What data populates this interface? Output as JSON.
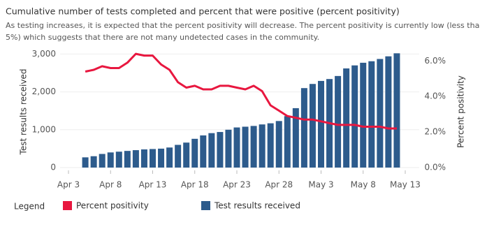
{
  "chart_data": {
    "type": "bar-line",
    "title": "Cumulative number of tests completed and percent that were positive (percent positivity)",
    "subtitle": [
      "As testing increases, it is expected that the percent positivity will decrease. The percent positivity is currently low (less than",
      "5%) which suggests that there are not many undetected cases in the community."
    ],
    "y_label": "Test results received",
    "y2_label": "Percent positivity",
    "legend_title": "Legend",
    "x": [
      "Apr 5",
      "Apr 6",
      "Apr 7",
      "Apr 8",
      "Apr 9",
      "Apr 10",
      "Apr 11",
      "Apr 12",
      "Apr 13",
      "Apr 14",
      "Apr 15",
      "Apr 16",
      "Apr 17",
      "Apr 18",
      "Apr 19",
      "Apr 20",
      "Apr 21",
      "Apr 22",
      "Apr 23",
      "Apr 24",
      "Apr 25",
      "Apr 26",
      "Apr 27",
      "Apr 28",
      "Apr 29",
      "Apr 30",
      "May 1",
      "May 2",
      "May 3",
      "May 4",
      "May 5",
      "May 6",
      "May 7",
      "May 8",
      "May 9",
      "May 10",
      "May 11",
      "May 12"
    ],
    "xticks": [
      "Apr 3",
      "Apr 8",
      "Apr 13",
      "Apr 18",
      "Apr 23",
      "Apr 28",
      "May 3",
      "May 8",
      "May 13"
    ],
    "ylim": [
      0,
      3100
    ],
    "yticks": [
      0,
      {
        "value": 1000,
        "label": "1,000"
      },
      {
        "value": 2000,
        "label": "2,000"
      },
      {
        "value": 3000,
        "label": "3,000"
      }
    ],
    "y2lim": [
      0,
      6.6
    ],
    "y2ticks": [
      {
        "value": 0,
        "label": "0.0%"
      },
      {
        "value": 2,
        "label": "2.0%"
      },
      {
        "value": 4,
        "label": "4.0%"
      },
      {
        "value": 6,
        "label": "6.0%"
      }
    ],
    "series": [
      {
        "name": "Percent positivity",
        "kind": "line",
        "axis": "y2",
        "color": "#e8173f",
        "values": [
          5.4,
          5.5,
          5.7,
          5.6,
          5.6,
          5.9,
          6.4,
          6.3,
          6.3,
          5.8,
          5.5,
          4.8,
          4.5,
          4.6,
          4.4,
          4.4,
          4.6,
          4.6,
          4.5,
          4.4,
          4.6,
          4.3,
          3.5,
          3.2,
          2.9,
          2.8,
          2.7,
          2.7,
          2.6,
          2.5,
          2.4,
          2.4,
          2.4,
          2.3,
          2.3,
          2.3,
          2.2,
          2.2
        ]
      },
      {
        "name": "Test results received",
        "kind": "bar",
        "color": "#2d5b8c",
        "values": [
          270,
          300,
          360,
          400,
          420,
          440,
          460,
          480,
          490,
          500,
          530,
          600,
          660,
          760,
          850,
          910,
          940,
          1000,
          1060,
          1080,
          1100,
          1140,
          1170,
          1230,
          1360,
          1570,
          2100,
          2210,
          2290,
          2340,
          2420,
          2620,
          2700,
          2770,
          2810,
          2870,
          2940,
          3020
        ]
      }
    ]
  }
}
